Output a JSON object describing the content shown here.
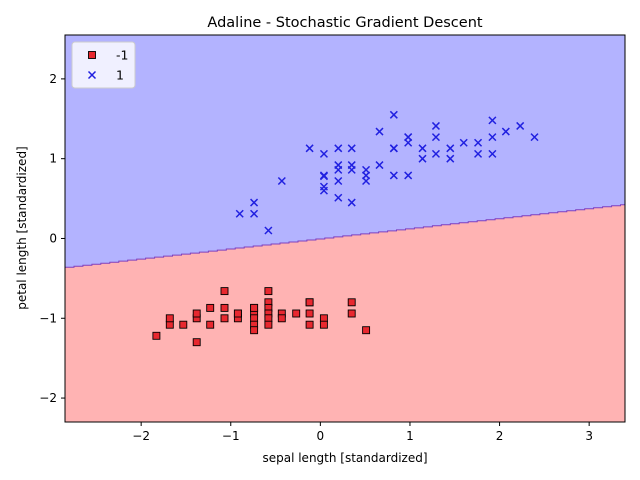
{
  "chart_data": {
    "type": "scatter",
    "title": "Adaline - Stochastic Gradient Descent",
    "xlabel": "sepal length [standardized]",
    "ylabel": "petal length [standardized]",
    "xlim": [
      -2.85,
      3.4
    ],
    "ylim": [
      -2.3,
      2.55
    ],
    "xticks": [
      -2,
      -1,
      0,
      1,
      2,
      3
    ],
    "yticks": [
      -2,
      -1,
      0,
      1,
      2
    ],
    "grid": false,
    "legend_position": "top-left",
    "decision_boundary": {
      "points": [
        [
          -2.85,
          -0.36
        ],
        [
          3.4,
          0.43
        ]
      ],
      "region_above_color": "#b3b3ff",
      "region_below_color": "#ffb3b3",
      "line_color": "#7f40bf"
    },
    "series": [
      {
        "name": "-1",
        "marker": "square",
        "color": "#e8282f",
        "points": [
          [
            -1.83,
            -1.22
          ],
          [
            -1.68,
            -1.08
          ],
          [
            -1.68,
            -1.0
          ],
          [
            -1.53,
            -1.08
          ],
          [
            -1.38,
            -1.3
          ],
          [
            -1.38,
            -1.0
          ],
          [
            -1.38,
            -0.94
          ],
          [
            -1.23,
            -1.08
          ],
          [
            -1.23,
            -0.87
          ],
          [
            -1.07,
            -0.66
          ],
          [
            -1.07,
            -0.87
          ],
          [
            -1.07,
            -1.0
          ],
          [
            -0.92,
            -0.94
          ],
          [
            -0.92,
            -1.0
          ],
          [
            -0.92,
            -0.94
          ],
          [
            -0.74,
            -0.87
          ],
          [
            -0.74,
            -0.94
          ],
          [
            -0.74,
            -1.0
          ],
          [
            -0.74,
            -1.08
          ],
          [
            -0.74,
            -1.15
          ],
          [
            -0.74,
            -0.87
          ],
          [
            -0.58,
            -0.66
          ],
          [
            -0.58,
            -0.8
          ],
          [
            -0.58,
            -0.87
          ],
          [
            -0.58,
            -0.94
          ],
          [
            -0.58,
            -1.0
          ],
          [
            -0.58,
            -1.08
          ],
          [
            -0.43,
            -0.94
          ],
          [
            -0.43,
            -1.0
          ],
          [
            -0.27,
            -0.94
          ],
          [
            -0.12,
            -0.8
          ],
          [
            -0.12,
            -0.8
          ],
          [
            -0.12,
            -0.94
          ],
          [
            -0.12,
            -1.08
          ],
          [
            0.04,
            -1.0
          ],
          [
            0.04,
            -1.08
          ],
          [
            0.35,
            -0.8
          ],
          [
            0.35,
            -0.94
          ],
          [
            0.51,
            -1.15
          ]
        ]
      },
      {
        "name": "1",
        "marker": "x",
        "color": "#2020e0",
        "points": [
          [
            -0.9,
            0.31
          ],
          [
            -0.74,
            0.31
          ],
          [
            -0.74,
            0.45
          ],
          [
            -0.58,
            0.1
          ],
          [
            -0.43,
            0.72
          ],
          [
            -0.12,
            1.13
          ],
          [
            0.04,
            1.06
          ],
          [
            0.04,
            0.79
          ],
          [
            0.04,
            0.78
          ],
          [
            0.04,
            0.65
          ],
          [
            0.04,
            0.6
          ],
          [
            0.2,
            0.51
          ],
          [
            0.2,
            0.72
          ],
          [
            0.2,
            0.86
          ],
          [
            0.2,
            0.92
          ],
          [
            0.2,
            1.13
          ],
          [
            0.35,
            0.45
          ],
          [
            0.35,
            0.86
          ],
          [
            0.35,
            0.92
          ],
          [
            0.35,
            1.13
          ],
          [
            0.51,
            0.72
          ],
          [
            0.51,
            0.79
          ],
          [
            0.51,
            0.86
          ],
          [
            0.66,
            0.92
          ],
          [
            0.66,
            1.34
          ],
          [
            0.82,
            0.79
          ],
          [
            0.82,
            1.13
          ],
          [
            0.82,
            1.13
          ],
          [
            0.82,
            1.55
          ],
          [
            0.98,
            0.79
          ],
          [
            0.98,
            1.2
          ],
          [
            0.98,
            1.27
          ],
          [
            0.98,
            1.27
          ],
          [
            1.14,
            1.0
          ],
          [
            1.14,
            1.13
          ],
          [
            1.29,
            1.06
          ],
          [
            1.29,
            1.27
          ],
          [
            1.29,
            1.41
          ],
          [
            1.45,
            1.0
          ],
          [
            1.45,
            1.13
          ],
          [
            1.6,
            1.2
          ],
          [
            1.76,
            1.06
          ],
          [
            1.76,
            1.2
          ],
          [
            1.92,
            1.06
          ],
          [
            1.92,
            1.27
          ],
          [
            1.92,
            1.48
          ],
          [
            2.07,
            1.34
          ],
          [
            2.23,
            1.41
          ],
          [
            2.39,
            1.27
          ]
        ]
      }
    ]
  }
}
